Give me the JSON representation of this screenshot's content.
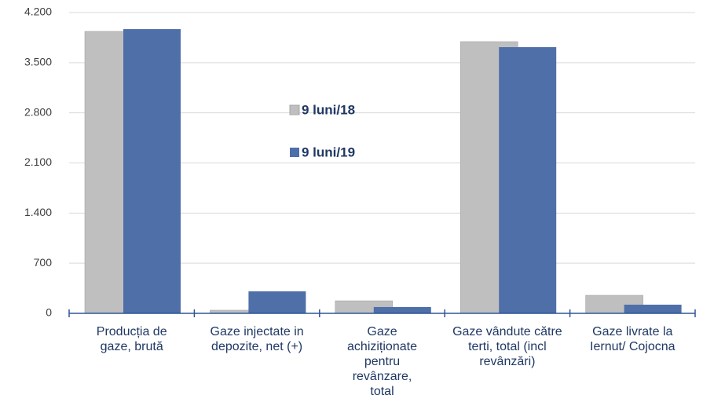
{
  "chart_data": {
    "type": "bar",
    "categories": [
      "Producția de gaze, brută",
      "Gaze injectate in depozite, net (+)",
      "Gaze achiziționate pentru revânzare, total",
      "Gaze vândute către terti, total (incl revânzări)",
      "Gaze livrate la Iernut/ Cojocna"
    ],
    "series": [
      {
        "name": "9 luni/18",
        "color": "#bfbfbf",
        "values": [
          3937,
          44,
          175,
          3794,
          252
        ]
      },
      {
        "name": "9 luni/19",
        "color": "#4f6fa8",
        "values": [
          3969,
          307,
          88,
          3717,
          121
        ]
      }
    ],
    "ylim": [
      0,
      4200
    ],
    "yticks": [
      0,
      700,
      {
        "value": 1400,
        "label": "1.400"
      },
      {
        "value": 2100,
        "label": "2.100"
      },
      {
        "value": 2800,
        "label": "2.800"
      },
      {
        "value": 3500,
        "label": "3.500"
      },
      {
        "value": 4200,
        "label": "4.200"
      }
    ],
    "grid": true
  }
}
